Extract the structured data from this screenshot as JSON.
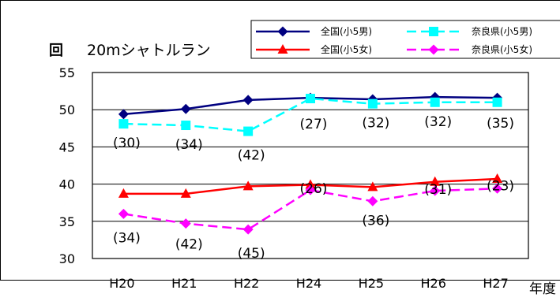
{
  "chart_data": {
    "type": "line",
    "title": "20mシャトルラン",
    "ylabel": "回",
    "xlabel": "年度",
    "categories": [
      "H20",
      "H21",
      "H22",
      "H24",
      "H25",
      "H26",
      "H27"
    ],
    "ylim": [
      30,
      55
    ],
    "yticks": [
      "55",
      "50",
      "45",
      "40",
      "35",
      "30"
    ],
    "grid": true,
    "legend_position": "top-right",
    "series": [
      {
        "name": "全国(小5男)",
        "values": [
          49.4,
          50.1,
          51.3,
          51.6,
          51.4,
          51.7,
          51.6
        ],
        "color": "#000080",
        "dash": "solid",
        "marker": "diamond"
      },
      {
        "name": "奈良県(小5男)",
        "values": [
          48.1,
          47.9,
          47.1,
          51.5,
          50.8,
          51.0,
          51.0
        ],
        "color": "#00ffff",
        "dash": "dashed",
        "marker": "square"
      },
      {
        "name": "全国(小5女)",
        "values": [
          38.7,
          38.7,
          39.7,
          39.9,
          39.6,
          40.3,
          40.7
        ],
        "color": "#ff0000",
        "dash": "solid",
        "marker": "triangle"
      },
      {
        "name": "奈良県(小5女)",
        "values": [
          36.0,
          34.7,
          33.9,
          39.2,
          37.7,
          39.1,
          39.4
        ],
        "color": "#ff00ff",
        "dash": "dashed",
        "marker": "diamond"
      }
    ],
    "annotations_boys": [
      "(30)",
      "(34)",
      "(42)",
      "(27)",
      "(32)",
      "(32)",
      "(35)"
    ],
    "annotations_girls": [
      "(34)",
      "(42)",
      "(45)",
      "(26)",
      "(36)",
      "(31)",
      "(23)"
    ]
  }
}
